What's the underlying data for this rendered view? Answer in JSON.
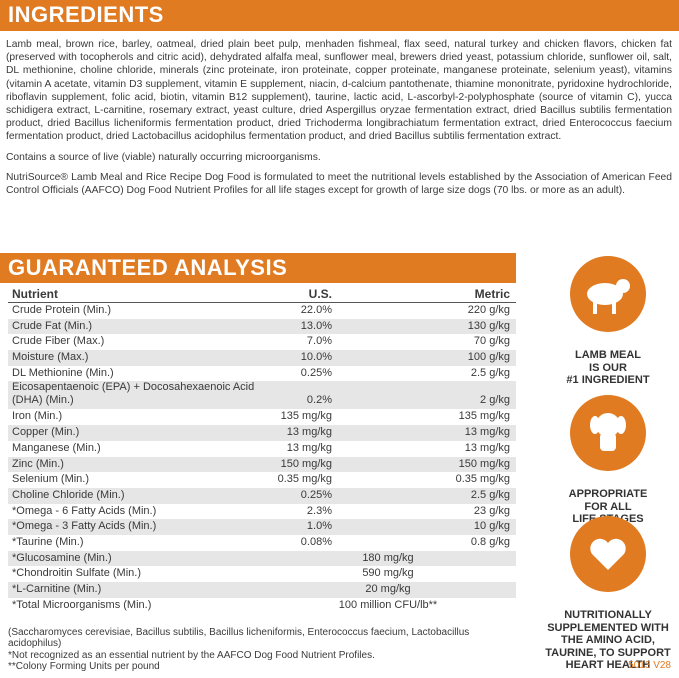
{
  "ingredients": {
    "title": "INGREDIENTS",
    "paragraphs": [
      "Lamb meal, brown rice, barley, oatmeal, dried plain beet pulp, menhaden fishmeal, flax seed, natural turkey and chicken flavors, chicken fat (preserved with tocopherols and citric acid), dehydrated alfalfa meal, sunflower meal, brewers dried yeast, potassium chloride, sunflower oil, salt, DL methionine, choline chloride, minerals (zinc proteinate, iron proteinate, copper proteinate, manganese proteinate, selenium yeast), vitamins (vitamin A acetate, vitamin D3 supplement, vitamin E supplement, niacin, d-calcium pantothenate, thiamine mononitrate, pyridoxine hydrochloride, riboflavin supplement, folic acid, biotin, vitamin B12 supplement), taurine, lactic acid, L-ascorbyl-2-polyphosphate (source of vitamin C), yucca schidigera extract, L-carnitine, rosemary extract, yeast culture, dried Aspergillus oryzae fermentation extract, dried Bacillus subtilis fermentation product, dried Bacillus licheniformis fermentation product, dried Trichoderma longibrachiatum fermentation extract, dried Enterococcus faecium fermentation product, dried Lactobacillus acidophilus fermentation product, and dried Bacillus subtilis fermentation extract.",
      "Contains a source of live (viable) naturally occurring microorganisms.",
      "NutriSource® Lamb Meal and Rice Recipe Dog Food is formulated to meet the nutritional levels established by the Association of American Feed Control Officials (AAFCO) Dog Food Nutrient Profiles for all life stages except for growth of large size dogs (70 lbs. or more as an adult)."
    ]
  },
  "analysis": {
    "title": "GUARANTEED ANALYSIS",
    "columns": [
      "Nutrient",
      "U.S.",
      "Metric"
    ],
    "rows": [
      [
        "Crude Protein (Min.)",
        "22.0%",
        "220 g/kg"
      ],
      [
        "Crude Fat (Min.)",
        "13.0%",
        "130 g/kg"
      ],
      [
        "Crude Fiber (Max.)",
        "7.0%",
        "70 g/kg"
      ],
      [
        "Moisture (Max.)",
        "10.0%",
        "100 g/kg"
      ],
      [
        "DL Methionine (Min.)",
        "0.25%",
        "2.5 g/kg"
      ],
      [
        "Eicosapentaenoic (EPA) + Docosahexaenoic Acid (DHA) (Min.)",
        "0.2%",
        "2 g/kg"
      ],
      [
        "Iron (Min.)",
        "135 mg/kg",
        "135 mg/kg"
      ],
      [
        "Copper (Min.)",
        "13 mg/kg",
        "13 mg/kg"
      ],
      [
        "Manganese (Min.)",
        "13 mg/kg",
        "13 mg/kg"
      ],
      [
        "Zinc (Min.)",
        "150 mg/kg",
        "150 mg/kg"
      ],
      [
        "Selenium (Min.)",
        "0.35 mg/kg",
        "0.35 mg/kg"
      ],
      [
        "Choline Chloride (Min.)",
        "0.25%",
        "2.5 g/kg"
      ],
      [
        "*Omega - 6 Fatty Acids (Min.)",
        "2.3%",
        "23 g/kg"
      ],
      [
        "*Omega - 3 Fatty Acids (Min.)",
        "1.0%",
        "10 g/kg"
      ],
      [
        "*Taurine (Min.)",
        "0.08%",
        "0.8 g/kg"
      ],
      [
        "*Glucosamine (Min.)",
        "180 mg/kg"
      ],
      [
        "*Chondroitin Sulfate (Min.)",
        "590 mg/kg"
      ],
      [
        "*L-Carnitine (Min.)",
        "20 mg/kg"
      ],
      [
        "*Total Microorganisms (Min.)",
        "100 million CFU/lb**"
      ]
    ],
    "footnotes": [
      "(Saccharomyces cerevisiae, Bacillus subtilis, Bacillus licheniformis, Enterococcus faecium, Lactobacillus acidophilus)",
      "*Not recognized as an essential nutrient by the AAFCO Dog Food Nutrient Profiles.",
      "**Colony Forming Units per pound"
    ]
  },
  "badges": [
    {
      "lines": [
        "LAMB MEAL",
        "IS OUR",
        "#1 INGREDIENT"
      ]
    },
    {
      "lines": [
        "APPROPRIATE",
        "FOR ALL",
        "LIFE STAGES"
      ]
    },
    {
      "lines": [
        "NUTRITIONALLY",
        "SUPPLEMENTED WITH",
        "THE AMINO ACID,",
        "TAURINE, TO SUPPORT",
        "HEART HEALTH"
      ]
    }
  ],
  "code": "5013 V28"
}
